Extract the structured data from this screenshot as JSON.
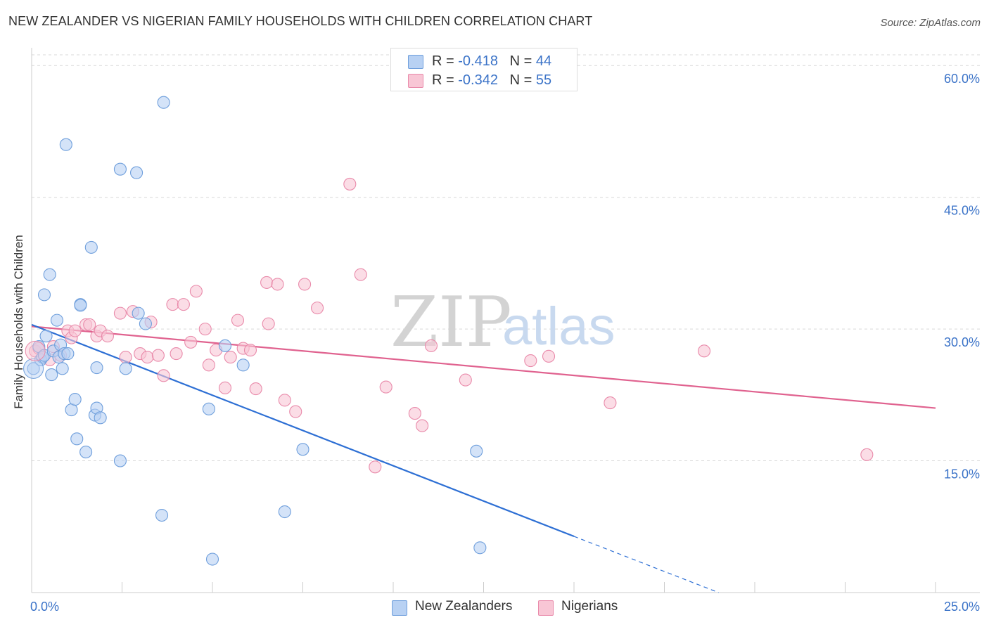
{
  "header": {
    "title": "NEW ZEALANDER VS NIGERIAN FAMILY HOUSEHOLDS WITH CHILDREN CORRELATION CHART",
    "source": "Source: ZipAtlas.com"
  },
  "legend": {
    "rows": [
      {
        "r_label": "R = ",
        "r_value": "-0.418",
        "n_label": "N = ",
        "n_value": "44"
      },
      {
        "r_label": "R = ",
        "r_value": "-0.342",
        "n_label": "N = ",
        "n_value": "55"
      }
    ]
  },
  "watermark": {
    "zip": "ZIP",
    "atlas": "atlas"
  },
  "colors": {
    "nz_fill": "#b8d1f3",
    "nz_stroke": "#6f9fdc",
    "nz_line": "#2d6fd4",
    "ng_fill": "#f8c6d5",
    "ng_stroke": "#e98aaa",
    "ng_line": "#e0628f",
    "tick_text": "#3b73c8",
    "grid": "#d9d9d9"
  },
  "chart_data": {
    "type": "scatter",
    "title": "NEW ZEALANDER VS NIGERIAN FAMILY HOUSEHOLDS WITH CHILDREN CORRELATION CHART",
    "xlabel": "",
    "ylabel": "Family Households with Children",
    "xlim": [
      0,
      25
    ],
    "ylim": [
      0,
      62.5
    ],
    "x_tick_labels": [
      "0.0%",
      "25.0%"
    ],
    "y_ticks": [
      15,
      30,
      45,
      60
    ],
    "y_tick_labels": [
      "15.0%",
      "30.0%",
      "45.0%",
      "60.0%"
    ],
    "legend": [
      "New Zealanders",
      "Nigerians"
    ],
    "series": [
      {
        "name": "New Zealanders",
        "r": -0.418,
        "n": 44,
        "points": [
          [
            0.05,
            25.5
          ],
          [
            0.2,
            28.0
          ],
          [
            0.25,
            26.5
          ],
          [
            0.3,
            26.8
          ],
          [
            0.35,
            27.0
          ],
          [
            0.4,
            29.2
          ],
          [
            0.5,
            36.2
          ],
          [
            0.55,
            24.8
          ],
          [
            0.6,
            27.5
          ],
          [
            0.7,
            31.0
          ],
          [
            0.75,
            26.8
          ],
          [
            0.8,
            28.2
          ],
          [
            0.85,
            25.5
          ],
          [
            0.9,
            27.2
          ],
          [
            0.95,
            51.0
          ],
          [
            1.0,
            27.2
          ],
          [
            1.1,
            20.8
          ],
          [
            1.2,
            22.0
          ],
          [
            1.25,
            17.5
          ],
          [
            1.35,
            32.8
          ],
          [
            1.35,
            32.7
          ],
          [
            1.5,
            16.0
          ],
          [
            1.65,
            39.3
          ],
          [
            1.75,
            20.2
          ],
          [
            1.8,
            21.0
          ],
          [
            1.8,
            25.6
          ],
          [
            1.9,
            19.9
          ],
          [
            0.35,
            33.9
          ],
          [
            2.45,
            48.2
          ],
          [
            2.45,
            15.0
          ],
          [
            2.6,
            25.5
          ],
          [
            2.9,
            47.8
          ],
          [
            2.95,
            31.8
          ],
          [
            3.15,
            30.6
          ],
          [
            3.6,
            8.8
          ],
          [
            3.65,
            55.8
          ],
          [
            4.9,
            20.9
          ],
          [
            5.0,
            3.8
          ],
          [
            5.35,
            28.1
          ],
          [
            5.85,
            25.9
          ],
          [
            7.0,
            9.2
          ],
          [
            7.5,
            16.3
          ],
          [
            12.3,
            16.1
          ],
          [
            12.4,
            5.1
          ]
        ],
        "trend": {
          "x": [
            0,
            15
          ],
          "y": [
            30.5,
            6.4
          ]
        },
        "trend_ext": {
          "x": [
            15,
            19.0
          ],
          "y": [
            6.4,
            0
          ]
        }
      },
      {
        "name": "Nigerians",
        "r": -0.342,
        "n": 55,
        "points": [
          [
            0.1,
            27.5
          ],
          [
            0.2,
            27.8
          ],
          [
            0.5,
            26.5
          ],
          [
            0.6,
            28.0
          ],
          [
            0.8,
            27.0
          ],
          [
            1.0,
            29.8
          ],
          [
            1.1,
            29.0
          ],
          [
            1.2,
            29.8
          ],
          [
            1.5,
            30.5
          ],
          [
            1.6,
            30.5
          ],
          [
            1.8,
            29.2
          ],
          [
            1.9,
            29.8
          ],
          [
            2.1,
            29.2
          ],
          [
            2.45,
            31.8
          ],
          [
            2.6,
            26.8
          ],
          [
            2.8,
            32.0
          ],
          [
            3.0,
            27.2
          ],
          [
            3.2,
            26.8
          ],
          [
            3.3,
            30.8
          ],
          [
            3.5,
            27.0
          ],
          [
            3.65,
            24.7
          ],
          [
            3.9,
            32.8
          ],
          [
            4.0,
            27.2
          ],
          [
            4.2,
            32.8
          ],
          [
            4.4,
            28.5
          ],
          [
            4.55,
            34.3
          ],
          [
            4.8,
            30.0
          ],
          [
            4.9,
            25.9
          ],
          [
            5.1,
            27.6
          ],
          [
            5.35,
            23.3
          ],
          [
            5.5,
            26.8
          ],
          [
            5.7,
            31.0
          ],
          [
            5.85,
            27.8
          ],
          [
            6.05,
            27.6
          ],
          [
            6.2,
            23.2
          ],
          [
            6.5,
            35.3
          ],
          [
            6.55,
            30.6
          ],
          [
            6.8,
            35.1
          ],
          [
            7.0,
            21.9
          ],
          [
            7.3,
            20.6
          ],
          [
            7.55,
            35.1
          ],
          [
            7.9,
            32.4
          ],
          [
            8.8,
            46.5
          ],
          [
            9.1,
            36.2
          ],
          [
            9.5,
            14.3
          ],
          [
            9.8,
            23.4
          ],
          [
            10.6,
            20.4
          ],
          [
            10.8,
            19.0
          ],
          [
            11.05,
            28.1
          ],
          [
            12.0,
            24.2
          ],
          [
            13.8,
            26.4
          ],
          [
            14.3,
            26.9
          ],
          [
            16.0,
            21.6
          ],
          [
            18.6,
            27.5
          ],
          [
            23.1,
            15.7
          ]
        ],
        "trend": {
          "x": [
            0,
            25
          ],
          "y": [
            30.3,
            21.0
          ]
        }
      }
    ]
  }
}
